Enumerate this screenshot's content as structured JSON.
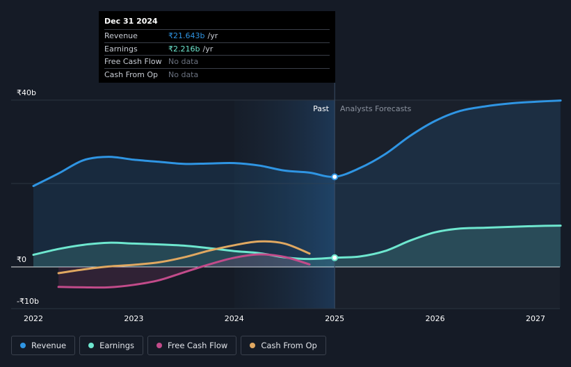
{
  "tooltip": {
    "date": "Dec 31 2024",
    "rows": [
      {
        "label": "Revenue",
        "value": "₹21.643b",
        "unit": "/yr",
        "color": "#2f95e3"
      },
      {
        "label": "Earnings",
        "value": "₹2.216b",
        "unit": "/yr",
        "color": "#6ee7cf"
      },
      {
        "label": "Free Cash Flow",
        "value": "No data",
        "unit": "",
        "color": ""
      },
      {
        "label": "Cash From Op",
        "value": "No data",
        "unit": "",
        "color": ""
      }
    ]
  },
  "labels": {
    "past": "Past",
    "forecast": "Analysts Forecasts"
  },
  "legend": [
    {
      "label": "Revenue",
      "color": "#2f95e3"
    },
    {
      "label": "Earnings",
      "color": "#6ee7cf"
    },
    {
      "label": "Free Cash Flow",
      "color": "#c24b8a"
    },
    {
      "label": "Cash From Op",
      "color": "#e0a861"
    }
  ],
  "chart_data": {
    "type": "line",
    "title": "",
    "xlabel": "",
    "ylabel": "",
    "unit": "₹b",
    "x_ticks": [
      2022,
      2023,
      2024,
      2025,
      2026,
      2027
    ],
    "x_range": [
      2022,
      2027.25
    ],
    "y_ticks": [
      {
        "value": 40,
        "label": "₹40b"
      },
      {
        "value": 0,
        "label": "₹0"
      },
      {
        "value": -10,
        "label": "-₹10b"
      }
    ],
    "y_gridlines": [
      40,
      20,
      0,
      -10
    ],
    "ylim": [
      -10,
      40
    ],
    "past_cutoff": 2025.0,
    "highlight_start": 2024.0,
    "marker_x": 2025.0,
    "series": [
      {
        "name": "Revenue",
        "color": "#2f95e3",
        "fill": true,
        "points": [
          [
            2022.0,
            19.4
          ],
          [
            2022.25,
            22.4
          ],
          [
            2022.5,
            25.6
          ],
          [
            2022.75,
            26.4
          ],
          [
            2023.0,
            25.7
          ],
          [
            2023.25,
            25.2
          ],
          [
            2023.5,
            24.7
          ],
          [
            2023.75,
            24.8
          ],
          [
            2024.0,
            24.9
          ],
          [
            2024.25,
            24.3
          ],
          [
            2024.5,
            23.1
          ],
          [
            2024.75,
            22.6
          ],
          [
            2025.0,
            21.6
          ],
          [
            2025.25,
            23.7
          ],
          [
            2025.5,
            27.0
          ],
          [
            2025.75,
            31.4
          ],
          [
            2026.0,
            35.0
          ],
          [
            2026.25,
            37.4
          ],
          [
            2026.5,
            38.5
          ],
          [
            2026.75,
            39.2
          ],
          [
            2027.0,
            39.6
          ],
          [
            2027.25,
            39.9
          ]
        ]
      },
      {
        "name": "Earnings",
        "color": "#6ee7cf",
        "fill": true,
        "points": [
          [
            2022.0,
            2.9
          ],
          [
            2022.25,
            4.3
          ],
          [
            2022.5,
            5.3
          ],
          [
            2022.75,
            5.8
          ],
          [
            2023.0,
            5.6
          ],
          [
            2023.25,
            5.4
          ],
          [
            2023.5,
            5.1
          ],
          [
            2023.75,
            4.5
          ],
          [
            2024.0,
            3.8
          ],
          [
            2024.25,
            3.3
          ],
          [
            2024.5,
            2.3
          ],
          [
            2024.75,
            1.9
          ],
          [
            2025.0,
            2.2
          ],
          [
            2025.25,
            2.5
          ],
          [
            2025.5,
            3.8
          ],
          [
            2025.75,
            6.3
          ],
          [
            2026.0,
            8.3
          ],
          [
            2026.25,
            9.2
          ],
          [
            2026.5,
            9.4
          ],
          [
            2026.75,
            9.6
          ],
          [
            2027.0,
            9.8
          ],
          [
            2027.25,
            9.9
          ]
        ]
      },
      {
        "name": "Free Cash Flow",
        "color": "#c24b8a",
        "fill": true,
        "points": [
          [
            2022.25,
            -4.8
          ],
          [
            2022.5,
            -4.9
          ],
          [
            2022.75,
            -4.9
          ],
          [
            2023.0,
            -4.3
          ],
          [
            2023.25,
            -3.2
          ],
          [
            2023.5,
            -1.3
          ],
          [
            2023.75,
            0.6
          ],
          [
            2024.0,
            2.2
          ],
          [
            2024.25,
            3.0
          ],
          [
            2024.5,
            2.4
          ],
          [
            2024.75,
            0.6
          ]
        ]
      },
      {
        "name": "Cash From Op",
        "color": "#e0a861",
        "fill": false,
        "points": [
          [
            2022.25,
            -1.5
          ],
          [
            2022.5,
            -0.6
          ],
          [
            2022.75,
            0.1
          ],
          [
            2023.0,
            0.5
          ],
          [
            2023.25,
            1.1
          ],
          [
            2023.5,
            2.3
          ],
          [
            2023.75,
            3.9
          ],
          [
            2024.0,
            5.2
          ],
          [
            2024.25,
            6.1
          ],
          [
            2024.5,
            5.6
          ],
          [
            2024.75,
            3.2
          ]
        ]
      }
    ]
  }
}
